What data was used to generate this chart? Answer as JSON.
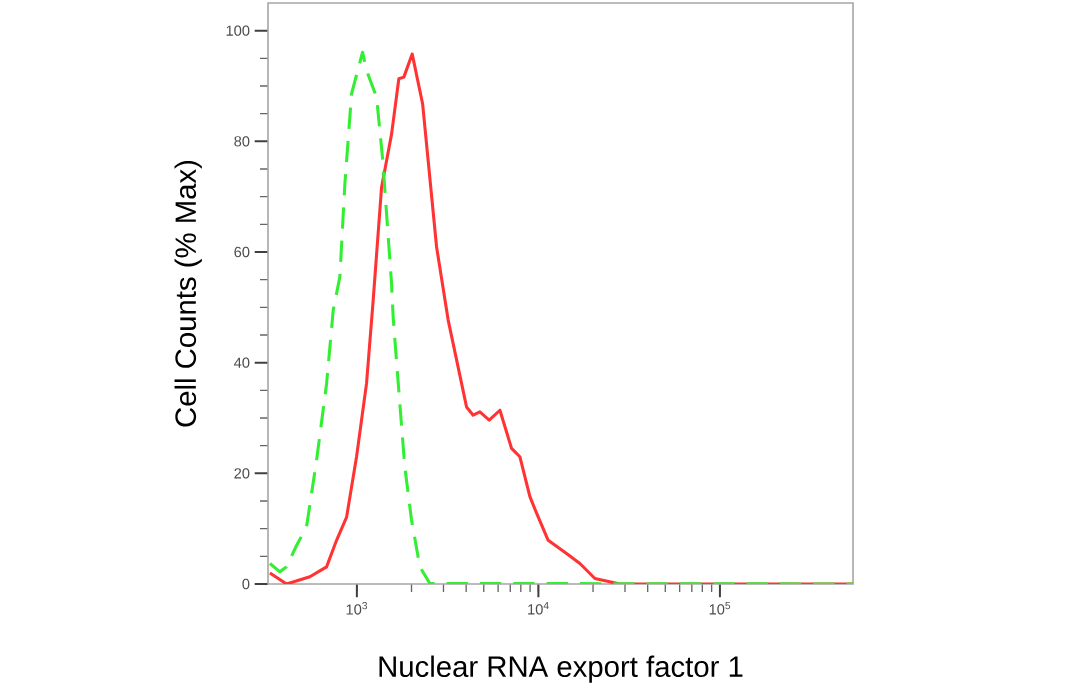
{
  "chart_data": {
    "type": "line",
    "xlabel": "Nuclear RNA export factor 1",
    "ylabel": "Cell Counts (% Max)",
    "log": "x",
    "xlim": [
      324,
      541000
    ],
    "ylim": [
      0,
      105
    ],
    "xticks": [
      {
        "value": 1000,
        "label": "10$^{3}$"
      },
      {
        "value": 10000,
        "label": "10$^{4}$"
      },
      {
        "value": 100000,
        "label": "10$^{5}$"
      }
    ],
    "yticks": [
      0,
      20,
      40,
      60,
      80,
      100
    ],
    "marker": "none",
    "series": [
      {
        "color": "#ff3333",
        "line_style": "solid",
        "x": [
          332,
          410,
          551,
          681,
          773,
          878,
          996,
          1131,
          1230,
          1368,
          1553,
          1703,
          1815,
          2017,
          2302,
          2749,
          3184,
          3394,
          4019,
          4372,
          4762,
          5358,
          6138,
          7115,
          7906,
          8979,
          9772,
          11320,
          14290,
          16930,
          20480,
          28120,
          541000
        ],
        "values": [
          2.0,
          0,
          1.3,
          3.1,
          7.9,
          12.1,
          23,
          36.3,
          51.3,
          71.7,
          81.3,
          91.3,
          91.6,
          95.8,
          86.8,
          60.9,
          47.7,
          43.4,
          32.0,
          30.5,
          31.1,
          29.6,
          31.4,
          24.5,
          23,
          15.8,
          12.8,
          7.9,
          5.5,
          3.7,
          1.0,
          0,
          0
        ]
      },
      {
        "color": "#33ee33",
        "line_style": "dashed",
        "x": [
          332,
          377,
          410,
          466,
          528,
          600,
          681,
          741,
          806,
          859,
          935,
          1075,
          1131,
          1284,
          1384,
          1458,
          1553,
          1585,
          1691,
          1837,
          2000,
          2225,
          2524,
          541000
        ],
        "values": [
          3.7,
          2.2,
          3.1,
          7.0,
          10.3,
          22.4,
          36.2,
          49.5,
          55.5,
          72.3,
          88.6,
          96.1,
          92.8,
          88,
          77.1,
          66.9,
          54.3,
          48.2,
          36.2,
          21.2,
          11.6,
          3.1,
          0.1,
          0
        ]
      }
    ]
  }
}
